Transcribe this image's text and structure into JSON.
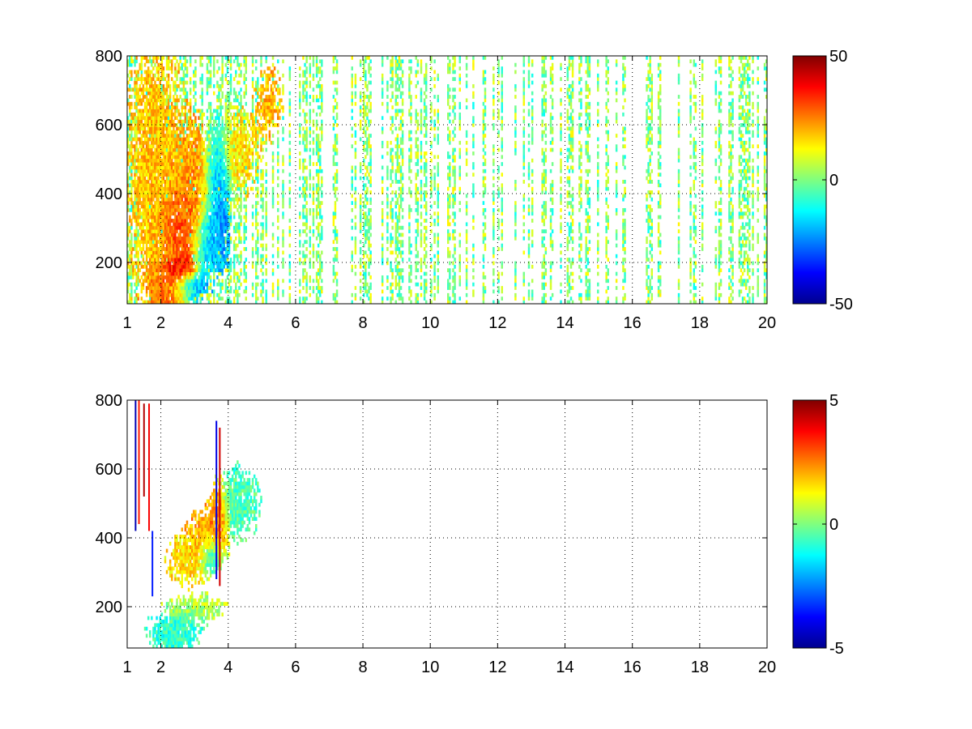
{
  "figure": {
    "background": "#ffffff",
    "colormap": "jet",
    "grid": "dotted"
  },
  "chart_data": [
    {
      "type": "heatmap",
      "title": "",
      "xlabel": "",
      "ylabel": "",
      "xlim": [
        1,
        20
      ],
      "ylim": [
        80,
        800
      ],
      "grid": true,
      "x_ticks": [
        1,
        2,
        4,
        6,
        8,
        10,
        12,
        14,
        16,
        18,
        20
      ],
      "x_tick_labels": [
        "1",
        "2",
        "4",
        "6",
        "8",
        "10",
        "12",
        "14",
        "16",
        "18",
        "20"
      ],
      "y_ticks": [
        200,
        400,
        600,
        800
      ],
      "y_tick_labels": [
        "200",
        "400",
        "600",
        "800"
      ],
      "colorbar": {
        "min": -50,
        "max": 50,
        "ticks": [
          -50,
          0,
          50
        ],
        "tick_labels": [
          "-50",
          "0",
          "50"
        ],
        "position": "right"
      },
      "clusters": [
        {
          "x": 2.3,
          "y": 130,
          "sx": 0.35,
          "sy": 40,
          "value": 30,
          "w": 1.2
        },
        {
          "x": 2.5,
          "y": 185,
          "sx": 0.25,
          "sy": 20,
          "value": 42,
          "w": 1.3
        },
        {
          "x": 2.6,
          "y": 320,
          "sx": 0.3,
          "sy": 55,
          "value": 35,
          "w": 1.2
        },
        {
          "x": 2.9,
          "y": 420,
          "sx": 0.45,
          "sy": 110,
          "value": 22,
          "w": 1.0
        },
        {
          "x": 3.7,
          "y": 400,
          "sx": 0.2,
          "sy": 110,
          "value": -28,
          "w": 1.1
        },
        {
          "x": 3.4,
          "y": 280,
          "sx": 0.25,
          "sy": 50,
          "value": -22,
          "w": 0.9
        },
        {
          "x": 2.9,
          "y": 125,
          "sx": 0.3,
          "sy": 25,
          "value": -25,
          "w": 1.0
        },
        {
          "x": 3.6,
          "y": 200,
          "sx": 0.3,
          "sy": 20,
          "value": -15,
          "w": 0.8
        },
        {
          "x": 4.3,
          "y": 520,
          "sx": 0.35,
          "sy": 70,
          "value": 15,
          "w": 0.9
        },
        {
          "x": 5.2,
          "y": 660,
          "sx": 0.25,
          "sy": 60,
          "value": 20,
          "w": 0.7
        },
        {
          "x": 1.8,
          "y": 450,
          "sx": 0.5,
          "sy": 250,
          "value": 18,
          "w": 0.9
        }
      ],
      "noise": {
        "value_range": [
          -12,
          14
        ],
        "density_near": 0.75,
        "density_far": 0.28,
        "x_decay": 6
      }
    },
    {
      "type": "heatmap",
      "title": "",
      "xlabel": "",
      "ylabel": "",
      "xlim": [
        1,
        20
      ],
      "ylim": [
        80,
        800
      ],
      "grid": true,
      "x_ticks": [
        1,
        2,
        4,
        6,
        8,
        10,
        12,
        14,
        16,
        18,
        20
      ],
      "x_tick_labels": [
        "1",
        "2",
        "4",
        "6",
        "8",
        "10",
        "12",
        "14",
        "16",
        "18",
        "20"
      ],
      "y_ticks": [
        200,
        400,
        600,
        800
      ],
      "y_tick_labels": [
        "200",
        "400",
        "600",
        "800"
      ],
      "colorbar": {
        "min": -5,
        "max": 5,
        "ticks": [
          -5,
          0,
          5
        ],
        "tick_labels": [
          "-5",
          "0",
          "5"
        ],
        "position": "right"
      },
      "clusters": [
        {
          "x": 2.4,
          "y": 130,
          "sx": 0.45,
          "sy": 30,
          "value": -0.8,
          "w": 1.2
        },
        {
          "x": 3.0,
          "y": 200,
          "sx": 0.5,
          "sy": 20,
          "value": 0.5,
          "w": 1.0
        },
        {
          "x": 2.8,
          "y": 340,
          "sx": 0.35,
          "sy": 40,
          "value": 1.5,
          "w": 1.0
        },
        {
          "x": 3.3,
          "y": 400,
          "sx": 0.3,
          "sy": 50,
          "value": 2.2,
          "w": 1.0
        },
        {
          "x": 3.7,
          "y": 450,
          "sx": 0.15,
          "sy": 60,
          "value": 3.0,
          "w": 1.0
        },
        {
          "x": 3.5,
          "y": 350,
          "sx": 0.2,
          "sy": 30,
          "value": -2.5,
          "w": 0.8
        },
        {
          "x": 4.3,
          "y": 500,
          "sx": 0.35,
          "sy": 60,
          "value": -0.5,
          "w": 1.0
        }
      ],
      "streaks": [
        {
          "x": 1.25,
          "y0": 420,
          "y1": 800,
          "value": -4.5
        },
        {
          "x": 1.35,
          "y0": 440,
          "y1": 800,
          "value": 3.5
        },
        {
          "x": 1.5,
          "y0": 520,
          "y1": 790,
          "value": 4.5
        },
        {
          "x": 1.65,
          "y0": 420,
          "y1": 790,
          "value": 3.8
        },
        {
          "x": 1.75,
          "y0": 230,
          "y1": 420,
          "value": -3.5
        },
        {
          "x": 3.65,
          "y0": 280,
          "y1": 740,
          "value": -4.0
        },
        {
          "x": 3.75,
          "y0": 260,
          "y1": 720,
          "value": 4.2
        }
      ],
      "noise": {
        "value_range": [
          -2.5,
          2.5
        ],
        "density_near": 0.0,
        "density_far": 0.0,
        "x_decay": 1
      }
    }
  ]
}
